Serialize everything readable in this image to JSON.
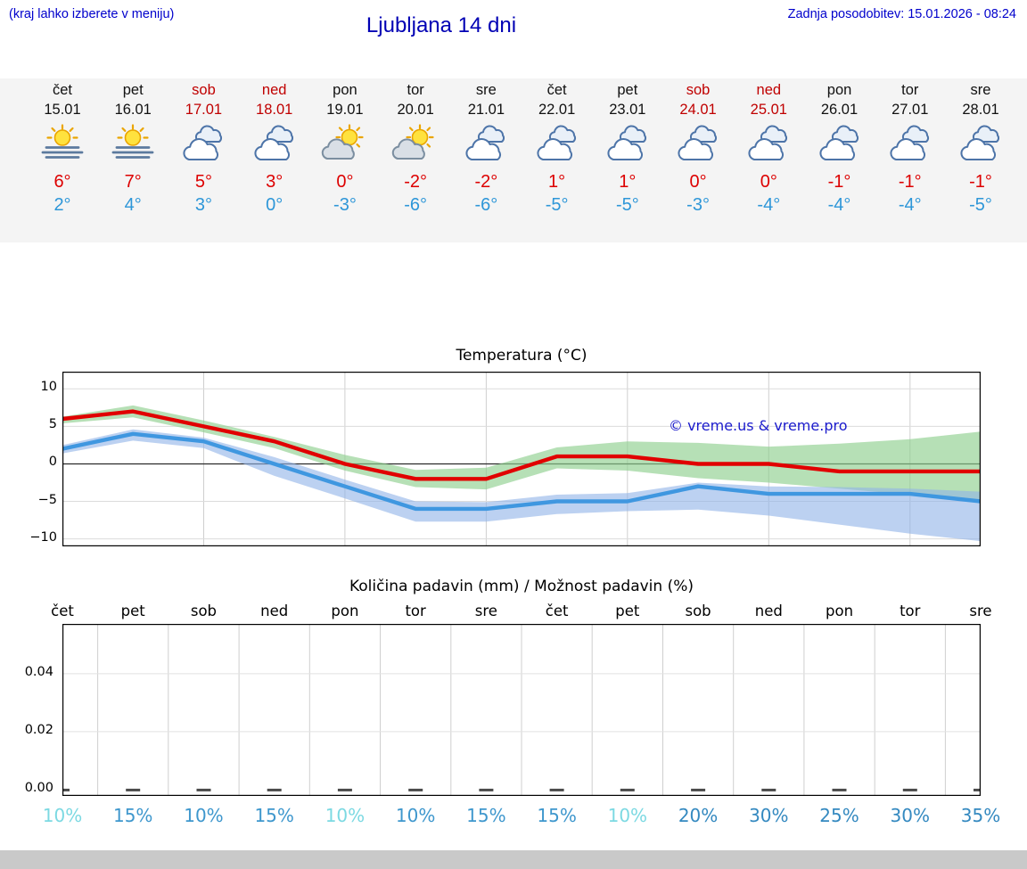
{
  "header": {
    "menu_hint": "(kraj lahko izberete v meniju)",
    "title": "Ljubljana 14 dni",
    "last_update": "Zadnja posodobitev: 15.01.2026 - 08:24"
  },
  "colors": {
    "link_blue": "#0000cc",
    "title_blue": "#0000b4",
    "weekend_red": "#c00000",
    "high_temp_red": "#dd0000",
    "low_temp_blue": "#2d96d8",
    "strip_background": "#f4f4f4",
    "footer_gray": "#c9c9c9",
    "watermark_blue": "#1a1acc"
  },
  "forecast": {
    "days": [
      {
        "name": "čet",
        "date": "15.01",
        "weekend": false,
        "icon": "sun-fog",
        "high": "6°",
        "low": "2°"
      },
      {
        "name": "pet",
        "date": "16.01",
        "weekend": false,
        "icon": "sun-fog",
        "high": "7°",
        "low": "4°"
      },
      {
        "name": "sob",
        "date": "17.01",
        "weekend": true,
        "icon": "cloudy",
        "high": "5°",
        "low": "3°"
      },
      {
        "name": "ned",
        "date": "18.01",
        "weekend": true,
        "icon": "cloudy",
        "high": "3°",
        "low": "0°"
      },
      {
        "name": "pon",
        "date": "19.01",
        "weekend": false,
        "icon": "sun-cloud",
        "high": "0°",
        "low": "-3°"
      },
      {
        "name": "tor",
        "date": "20.01",
        "weekend": false,
        "icon": "sun-cloud",
        "high": "-2°",
        "low": "-6°"
      },
      {
        "name": "sre",
        "date": "21.01",
        "weekend": false,
        "icon": "cloudy",
        "high": "-2°",
        "low": "-6°"
      },
      {
        "name": "čet",
        "date": "22.01",
        "weekend": false,
        "icon": "cloudy",
        "high": "1°",
        "low": "-5°"
      },
      {
        "name": "pet",
        "date": "23.01",
        "weekend": false,
        "icon": "cloudy",
        "high": "1°",
        "low": "-5°"
      },
      {
        "name": "sob",
        "date": "24.01",
        "weekend": true,
        "icon": "cloudy",
        "high": "0°",
        "low": "-3°"
      },
      {
        "name": "ned",
        "date": "25.01",
        "weekend": true,
        "icon": "cloudy",
        "high": "0°",
        "low": "-4°"
      },
      {
        "name": "pon",
        "date": "26.01",
        "weekend": false,
        "icon": "cloudy",
        "high": "-1°",
        "low": "-4°"
      },
      {
        "name": "tor",
        "date": "27.01",
        "weekend": false,
        "icon": "cloudy",
        "high": "-1°",
        "low": "-4°"
      },
      {
        "name": "sre",
        "date": "28.01",
        "weekend": false,
        "icon": "cloudy",
        "high": "-1°",
        "low": "-5°"
      }
    ]
  },
  "chart_data": [
    {
      "type": "line",
      "title": "Temperatura (°C)",
      "x_labels": [
        "čet",
        "pet",
        "sob",
        "ned",
        "pon",
        "tor",
        "sre",
        "čet",
        "pet",
        "sob",
        "ned",
        "pon",
        "tor",
        "sre"
      ],
      "xlabel": "",
      "ylabel": "",
      "ylim": [
        -11,
        12.3
      ],
      "yticks": [
        {
          "v": 10,
          "label": "10"
        },
        {
          "v": 5,
          "label": "5"
        },
        {
          "v": 0,
          "label": "0"
        },
        {
          "v": -5,
          "label": "−5"
        },
        {
          "v": -10,
          "label": "−10"
        }
      ],
      "grid": true,
      "legend": "none",
      "watermark": "© vreme.us & vreme.pro",
      "series": [
        {
          "name": "max-temp",
          "color": "#e10000",
          "values": [
            6,
            7,
            5,
            3,
            0,
            -2,
            -2,
            1,
            1,
            0,
            0,
            -1,
            -1,
            -1
          ]
        },
        {
          "name": "min-temp",
          "color": "#3f97e0",
          "values": [
            2,
            4,
            3,
            0,
            -3,
            -6,
            -6,
            -5,
            -5,
            -3,
            -4,
            -4,
            -4,
            -5
          ]
        }
      ],
      "bands": [
        {
          "name": "max-temp-range",
          "color": "#8fd08f",
          "opacity": 0.65,
          "upper": [
            6.3,
            7.8,
            5.8,
            3.6,
            1.2,
            -0.8,
            -0.5,
            2.2,
            3,
            2.8,
            2.3,
            2.7,
            3.3,
            4.3
          ],
          "lower": [
            5.4,
            6.2,
            4.2,
            2.1,
            -0.9,
            -3.1,
            -3.4,
            -0.6,
            -0.9,
            -1.9,
            -2.5,
            -3.3,
            -4.1,
            -5.1
          ]
        },
        {
          "name": "min-temp-range",
          "color": "#8fb2e8",
          "opacity": 0.6,
          "upper": [
            2.5,
            4.6,
            3.5,
            0.9,
            -2.1,
            -5,
            -5.1,
            -4.1,
            -3.9,
            -2.5,
            -3,
            -3.1,
            -3.3,
            -3.7
          ],
          "lower": [
            1.4,
            3.1,
            2.1,
            -1.6,
            -4.6,
            -7.7,
            -7.7,
            -6.7,
            -6.3,
            -6.1,
            -6.9,
            -8.1,
            -9.3,
            -10.3
          ]
        }
      ]
    },
    {
      "type": "bar",
      "title": "Količina padavin (mm) / Možnost padavin (%)",
      "categories": [
        "čet",
        "pet",
        "sob",
        "ned",
        "pon",
        "tor",
        "sre",
        "čet",
        "pet",
        "sob",
        "ned",
        "pon",
        "tor",
        "sre"
      ],
      "values": [
        0,
        0,
        0,
        0,
        0,
        0,
        0,
        0,
        0,
        0,
        0,
        0,
        0,
        0
      ],
      "ylim": [
        -0.0022,
        0.0572
      ],
      "yticks": [
        {
          "v": 0.04,
          "label": "0.04"
        },
        {
          "v": 0.02,
          "label": "0.02"
        },
        {
          "v": 0,
          "label": "0.00"
        }
      ],
      "grid": true,
      "probabilities": [
        {
          "label": "10%",
          "color": "#7cd9e2"
        },
        {
          "label": "15%",
          "color": "#3e97cd"
        },
        {
          "label": "10%",
          "color": "#3e97cd"
        },
        {
          "label": "15%",
          "color": "#3e97cd"
        },
        {
          "label": "10%",
          "color": "#7cd9e2"
        },
        {
          "label": "10%",
          "color": "#3e97cd"
        },
        {
          "label": "15%",
          "color": "#3e97cd"
        },
        {
          "label": "15%",
          "color": "#3e97cd"
        },
        {
          "label": "10%",
          "color": "#7cd9e2"
        },
        {
          "label": "20%",
          "color": "#3489c0"
        },
        {
          "label": "30%",
          "color": "#3489c0"
        },
        {
          "label": "25%",
          "color": "#3489c0"
        },
        {
          "label": "30%",
          "color": "#3489c0"
        },
        {
          "label": "35%",
          "color": "#3489c0"
        }
      ]
    }
  ]
}
